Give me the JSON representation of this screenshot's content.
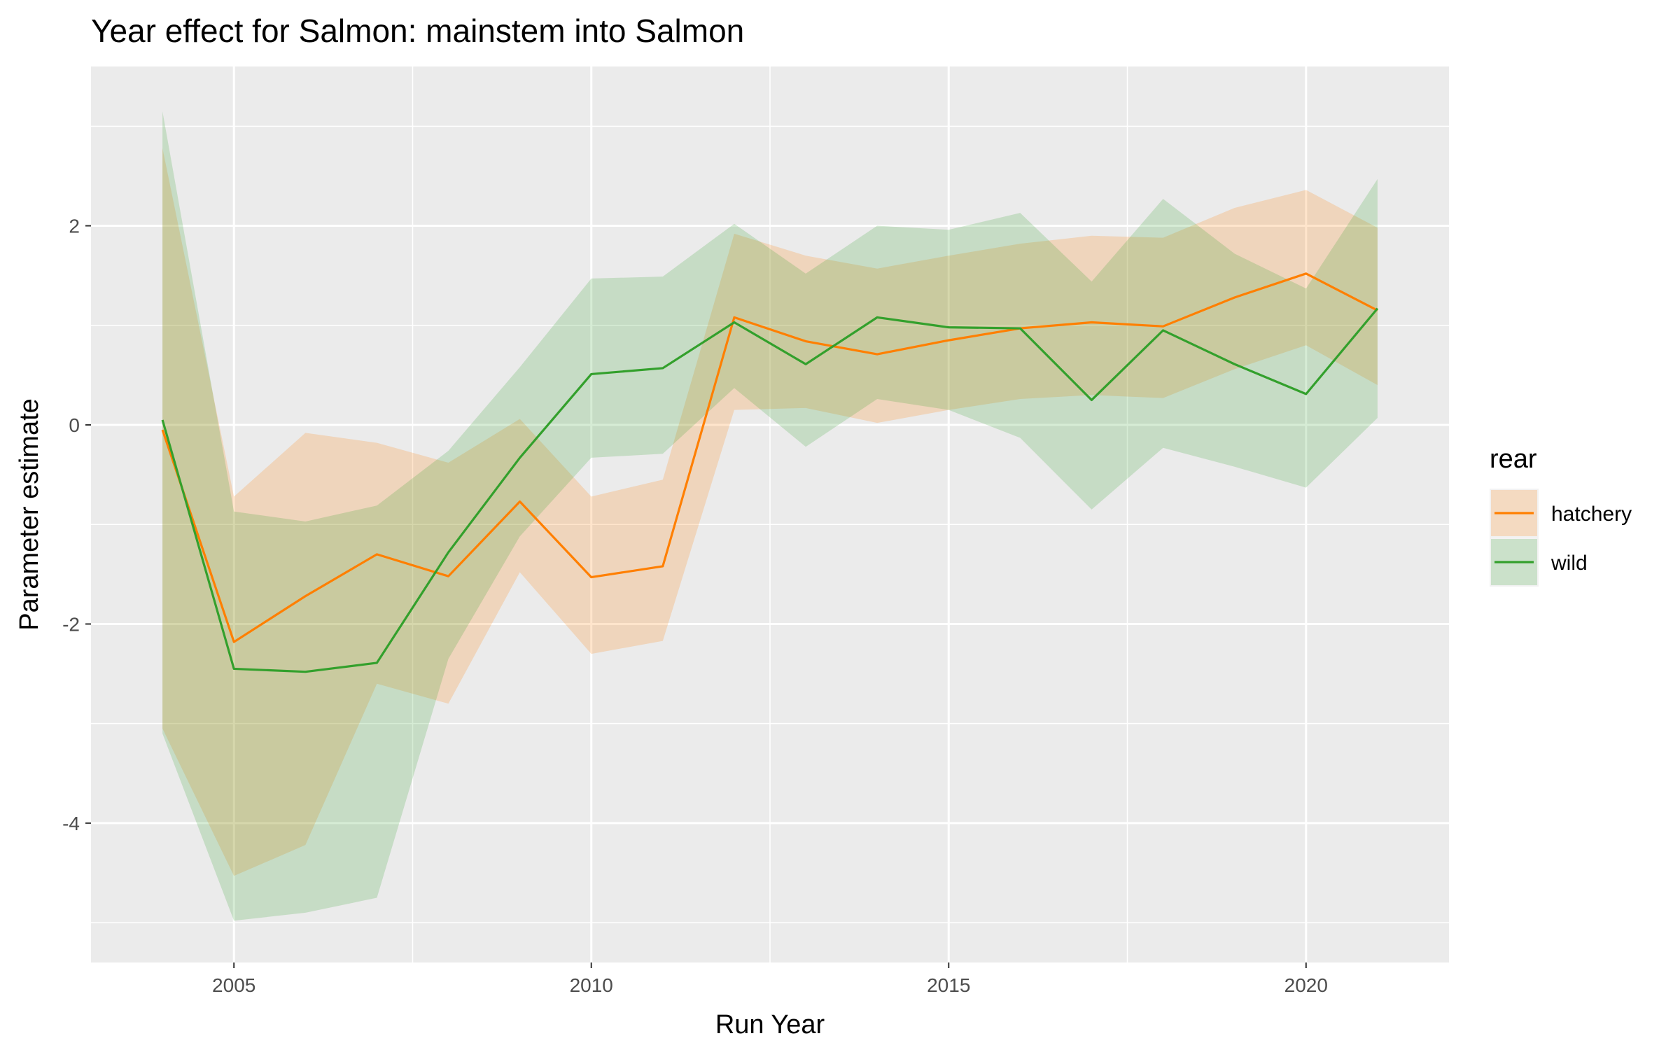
{
  "chart_data": {
    "type": "line",
    "title": "Year effect for Salmon: mainstem into Salmon",
    "xlabel": "Run Year",
    "ylabel": "Parameter estimate",
    "xlim": [
      2003,
      2022
    ],
    "ylim": [
      -5.4,
      3.6
    ],
    "x_ticks": [
      2005,
      2010,
      2015,
      2020
    ],
    "x_tick_labels": [
      "2005",
      "2010",
      "2015",
      "2020"
    ],
    "y_ticks": [
      -4,
      -2,
      0,
      2
    ],
    "y_tick_labels": [
      "-4",
      "-2",
      "0",
      "2"
    ],
    "grid": true,
    "legend_position": "right",
    "legend_title": "rear",
    "x": [
      2004,
      2005,
      2006,
      2007,
      2008,
      2009,
      2010,
      2011,
      2012,
      2013,
      2014,
      2015,
      2016,
      2017,
      2018,
      2019,
      2020,
      2021
    ],
    "series": [
      {
        "name": "hatchery",
        "color": "#ff7f00",
        "fill": "#ff7f00",
        "values": [
          -0.05,
          -2.18,
          -1.72,
          -1.3,
          -1.52,
          -0.77,
          -1.53,
          -1.42,
          1.08,
          0.84,
          0.71,
          0.85,
          0.97,
          1.03,
          0.99,
          1.28,
          1.52,
          1.15
        ],
        "lower": [
          -3.05,
          -4.53,
          -4.22,
          -2.6,
          -2.8,
          -1.48,
          -2.3,
          -2.17,
          0.15,
          0.17,
          0.02,
          0.15,
          0.26,
          0.3,
          0.27,
          0.56,
          0.8,
          0.4
        ],
        "upper": [
          2.78,
          -0.72,
          -0.08,
          -0.18,
          -0.38,
          0.06,
          -0.72,
          -0.55,
          1.92,
          1.7,
          1.57,
          1.7,
          1.82,
          1.9,
          1.88,
          2.18,
          2.36,
          1.98
        ]
      },
      {
        "name": "wild",
        "color": "#33a02c",
        "fill": "#33a02c",
        "values": [
          0.05,
          -2.45,
          -2.48,
          -2.39,
          -1.28,
          -0.33,
          0.51,
          0.57,
          1.03,
          0.61,
          1.08,
          0.98,
          0.97,
          0.25,
          0.95,
          0.61,
          0.31,
          1.17
        ],
        "lower": [
          -3.1,
          -4.98,
          -4.9,
          -4.75,
          -2.35,
          -1.12,
          -0.33,
          -0.29,
          0.37,
          -0.22,
          0.26,
          0.15,
          -0.13,
          -0.85,
          -0.23,
          -0.42,
          -0.63,
          0.07
        ],
        "upper": [
          3.15,
          -0.87,
          -0.97,
          -0.81,
          -0.26,
          0.58,
          1.47,
          1.49,
          2.02,
          1.52,
          2.0,
          1.96,
          2.13,
          1.44,
          2.27,
          1.72,
          1.37,
          2.47
        ]
      }
    ]
  }
}
